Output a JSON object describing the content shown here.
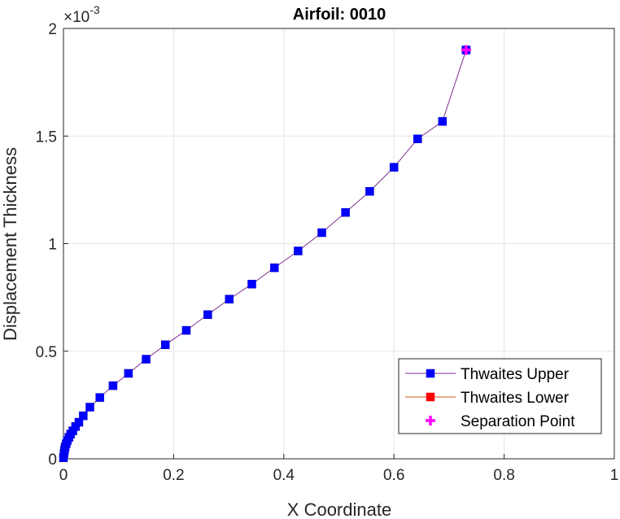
{
  "chart_data": {
    "type": "line",
    "title": "Airfoil: 0010",
    "xlabel": "X Coordinate",
    "ylabel": "Displacement Thickness",
    "xlim": [
      0,
      1
    ],
    "ylim": [
      0,
      0.002
    ],
    "y_exponent_label": "×10",
    "y_exponent_power": "-3",
    "x_ticks": [
      "0",
      "0.2",
      "0.4",
      "0.6",
      "0.8",
      "1"
    ],
    "y_ticks": [
      "0",
      "0.5",
      "1",
      "1.5",
      "2"
    ],
    "grid": true,
    "legend_placement": "bottom-right",
    "series": [
      {
        "name": "Thwaites Upper",
        "color": "#7e2f8e",
        "marker_color": "#0000ff",
        "marker": "square",
        "x": [
          0.0,
          0.001,
          0.002,
          0.003,
          0.005,
          0.007,
          0.01,
          0.013,
          0.017,
          0.022,
          0.028,
          0.036,
          0.048,
          0.066,
          0.09,
          0.118,
          0.15,
          0.185,
          0.223,
          0.262,
          0.301,
          0.342,
          0.383,
          0.426,
          0.469,
          0.512,
          0.556,
          0.6,
          0.643,
          0.688,
          0.731
        ],
        "y": [
          5e-06,
          2.5e-05,
          4e-05,
          5.5e-05,
          7e-05,
          8.5e-05,
          0.0001,
          0.000115,
          0.00013,
          0.00015,
          0.00017,
          0.0002,
          0.00024,
          0.000285,
          0.00034,
          0.000397,
          0.000463,
          0.00053,
          0.000597,
          0.00067,
          0.000742,
          0.000812,
          0.000888,
          0.000966,
          0.001051,
          0.001145,
          0.001243,
          0.001355,
          0.001487,
          0.001568,
          0.0019
        ]
      },
      {
        "name": "Thwaites Lower",
        "color": "#d95319",
        "marker_color": "#ff0000",
        "marker": "square",
        "x": [],
        "y": []
      },
      {
        "name": "Separation Point",
        "color": "#ff00ff",
        "marker": "plus",
        "x": [
          0.731
        ],
        "y": [
          0.0019
        ]
      }
    ]
  }
}
